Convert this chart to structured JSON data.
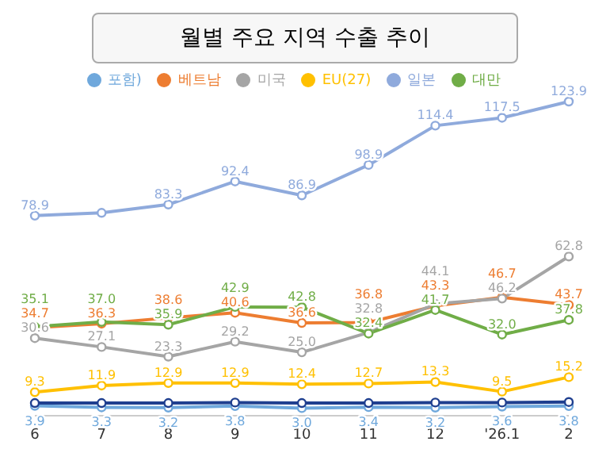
{
  "chart_data": {
    "type": "line",
    "title": "월별 주요 지역 수출 추이",
    "categories": [
      "6",
      "7",
      "8",
      "9",
      "10",
      "11",
      "12",
      "'26.1",
      "2"
    ],
    "marker": "circle",
    "legend": "top",
    "grid": false,
    "tick_labels": "x",
    "series": [
      {
        "name": "포함)",
        "color": "#6fa8dc",
        "values": [
          3.9,
          3.3,
          3.2,
          3.8,
          3.0,
          3.4,
          3.2,
          3.6,
          3.8
        ],
        "value_labels": [
          "3.9",
          "3.3",
          "3.2",
          "3.8",
          "3.0",
          "3.4",
          "3.2",
          "3.6",
          "3.8"
        ]
      },
      {
        "color": "#1f3f8f",
        "values": [
          5,
          5,
          5,
          5.2,
          5,
          5,
          5.2,
          5.2,
          5.4
        ]
      },
      {
        "name": "베트남",
        "color": "#ed7d31",
        "values": [
          34.7,
          36.3,
          38.6,
          40.6,
          36.6,
          36.8,
          43.3,
          46.7,
          43.7
        ],
        "value_labels": [
          "34.7",
          "36.3",
          "38.6",
          "40.6",
          "36.6",
          "36.8",
          "43.3",
          "46.7",
          "43.7"
        ]
      },
      {
        "name": "미국",
        "color": "#a5a5a5",
        "values": [
          30.6,
          27.1,
          23.3,
          29.2,
          25.0,
          32.8,
          44.1,
          46.2,
          62.8
        ],
        "value_labels": [
          "30.6",
          "27.1",
          "23.3",
          "29.2",
          "25.0",
          "32.8",
          "44.1",
          "46.2",
          "62.8"
        ]
      },
      {
        "name": "EU(27)",
        "color": "#ffc000",
        "values": [
          9.3,
          11.9,
          12.9,
          12.9,
          12.4,
          12.7,
          13.3,
          9.5,
          15.2
        ],
        "value_labels": [
          "9.3",
          "11.9",
          "12.9",
          "12.9",
          "12.4",
          "12.7",
          "13.3",
          "9.5",
          "15.2"
        ]
      },
      {
        "name": "일본",
        "color": "#8faadc",
        "values": [
          78.9,
          80,
          83.3,
          92.4,
          86.9,
          98.9,
          114.4,
          117.5,
          123.9
        ],
        "value_labels": [
          "78.9",
          null,
          "83.3",
          "92.4",
          "86.9",
          "98.9",
          "114.4",
          "117.5",
          "123.9"
        ]
      },
      {
        "name": "대만",
        "color": "#70ad47",
        "values": [
          35.1,
          37.0,
          35.9,
          42.9,
          42.8,
          32.4,
          41.7,
          32.0,
          37.8
        ],
        "value_labels": [
          "35.1",
          "37.0",
          "35.9",
          "42.9",
          "42.8",
          "32.4",
          "41.7",
          "32.0",
          "37.8"
        ]
      }
    ]
  }
}
